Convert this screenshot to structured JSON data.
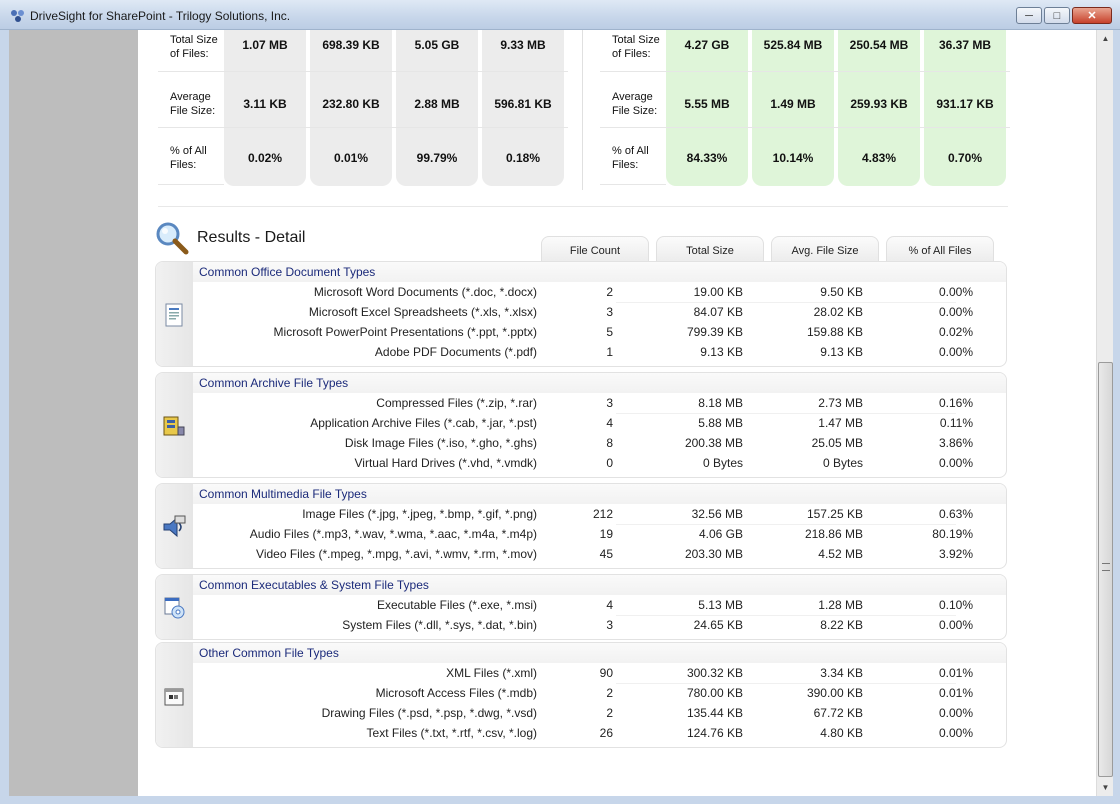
{
  "window": {
    "title": "DriveSight for SharePoint - Trilogy Solutions, Inc."
  },
  "summary_left": {
    "rows": [
      {
        "label_1": "Total Size",
        "label_2": "of Files:",
        "values": [
          "1.07 MB",
          "698.39 KB",
          "5.05 GB",
          "9.33 MB"
        ]
      },
      {
        "label_1": "Average",
        "label_2": "File Size:",
        "values": [
          "3.11 KB",
          "232.80 KB",
          "2.88 MB",
          "596.81 KB"
        ]
      },
      {
        "label_1": "% of All",
        "label_2": "Files:",
        "values": [
          "0.02%",
          "0.01%",
          "99.79%",
          "0.18%"
        ]
      }
    ]
  },
  "summary_right": {
    "rows": [
      {
        "label_1": "Total Size",
        "label_2": "of Files:",
        "values": [
          "4.27 GB",
          "525.84 MB",
          "250.54 MB",
          "36.37 MB"
        ]
      },
      {
        "label_1": "Average",
        "label_2": "File Size:",
        "values": [
          "5.55 MB",
          "1.49 MB",
          "259.93 KB",
          "931.17 KB"
        ]
      },
      {
        "label_1": "% of All",
        "label_2": "Files:",
        "values": [
          "84.33%",
          "10.14%",
          "4.83%",
          "0.70%"
        ]
      }
    ]
  },
  "results": {
    "title": "Results - Detail",
    "columns": [
      "File Count",
      "Total Size",
      "Avg. File Size",
      "% of All Files"
    ],
    "groups": [
      {
        "title": "Common Office Document Types",
        "icon": "document-icon",
        "rows": [
          {
            "name": "Microsoft Word Documents (*.doc, *.docx)",
            "count": "2",
            "total": "19.00 KB",
            "avg": "9.50 KB",
            "pct": "0.00%"
          },
          {
            "name": "Microsoft Excel Spreadsheets (*.xls, *.xlsx)",
            "count": "3",
            "total": "84.07 KB",
            "avg": "28.02 KB",
            "pct": "0.00%"
          },
          {
            "name": "Microsoft PowerPoint Presentations (*.ppt, *.pptx)",
            "count": "5",
            "total": "799.39 KB",
            "avg": "159.88 KB",
            "pct": "0.02%"
          },
          {
            "name": "Adobe PDF Documents (*.pdf)",
            "count": "1",
            "total": "9.13 KB",
            "avg": "9.13 KB",
            "pct": "0.00%"
          }
        ]
      },
      {
        "title": "Common Archive File Types",
        "icon": "archive-icon",
        "rows": [
          {
            "name": "Compressed Files (*.zip, *.rar)",
            "count": "3",
            "total": "8.18 MB",
            "avg": "2.73 MB",
            "pct": "0.16%"
          },
          {
            "name": "Application Archive Files (*.cab, *.jar, *.pst)",
            "count": "4",
            "total": "5.88 MB",
            "avg": "1.47 MB",
            "pct": "0.11%"
          },
          {
            "name": "Disk Image Files (*.iso, *.gho, *.ghs)",
            "count": "8",
            "total": "200.38 MB",
            "avg": "25.05 MB",
            "pct": "3.86%"
          },
          {
            "name": "Virtual Hard Drives (*.vhd, *.vmdk)",
            "count": "0",
            "total": "0 Bytes",
            "avg": "0 Bytes",
            "pct": "0.00%"
          }
        ]
      },
      {
        "title": "Common Multimedia File Types",
        "icon": "multimedia-icon",
        "rows": [
          {
            "name": "Image Files (*.jpg, *.jpeg, *.bmp, *.gif, *.png)",
            "count": "212",
            "total": "32.56 MB",
            "avg": "157.25 KB",
            "pct": "0.63%"
          },
          {
            "name": "Audio Files (*.mp3, *.wav, *.wma, *.aac, *.m4a, *.m4p)",
            "count": "19",
            "total": "4.06 GB",
            "avg": "218.86 MB",
            "pct": "80.19%"
          },
          {
            "name": "Video Files (*.mpeg, *.mpg, *.avi, *.wmv, *.rm, *.mov)",
            "count": "45",
            "total": "203.30 MB",
            "avg": "4.52 MB",
            "pct": "3.92%"
          }
        ]
      },
      {
        "title": "Common Executables & System File Types",
        "icon": "executable-icon",
        "rows": [
          {
            "name": "Executable Files (*.exe, *.msi)",
            "count": "4",
            "total": "5.13 MB",
            "avg": "1.28 MB",
            "pct": "0.10%"
          },
          {
            "name": "System Files (*.dll, *.sys, *.dat, *.bin)",
            "count": "3",
            "total": "24.65 KB",
            "avg": "8.22 KB",
            "pct": "0.00%"
          }
        ]
      },
      {
        "title": "Other Common File Types",
        "icon": "other-file-icon",
        "rows": [
          {
            "name": "XML Files (*.xml)",
            "count": "90",
            "total": "300.32 KB",
            "avg": "3.34 KB",
            "pct": "0.01%"
          },
          {
            "name": "Microsoft Access Files (*.mdb)",
            "count": "2",
            "total": "780.00 KB",
            "avg": "390.00 KB",
            "pct": "0.01%"
          },
          {
            "name": "Drawing Files (*.psd, *.psp, *.dwg, *.vsd)",
            "count": "2",
            "total": "135.44 KB",
            "avg": "67.72 KB",
            "pct": "0.00%"
          },
          {
            "name": "Text Files (*.txt, *.rtf, *.csv, *.log)",
            "count": "26",
            "total": "124.76 KB",
            "avg": "4.80 KB",
            "pct": "0.00%"
          }
        ]
      }
    ]
  },
  "colors": {
    "title_blue": "#1b2a7a",
    "left_column": "#ececec",
    "right_column": "#dff5d9",
    "side_panel": "#bdbdbd"
  }
}
